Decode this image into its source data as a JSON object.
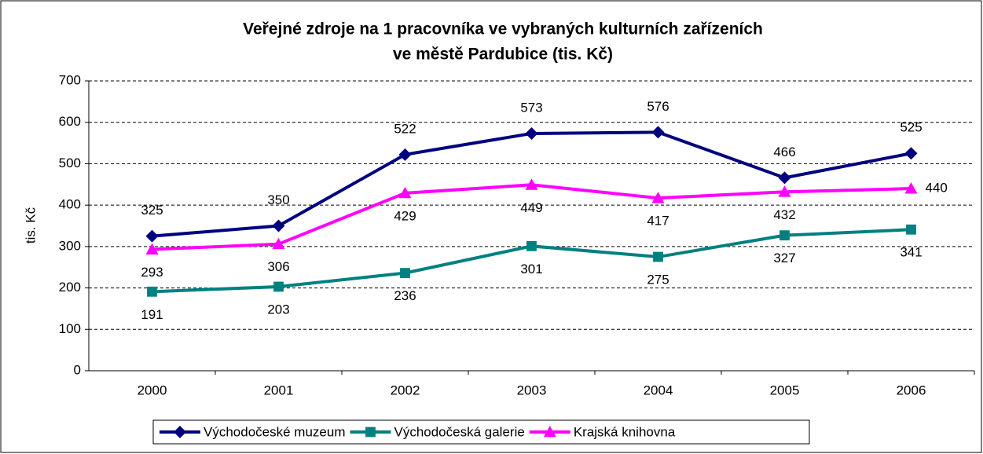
{
  "chart_data": {
    "type": "line",
    "title": [
      "Veřejné zdroje na 1 pracovníka ve vybraných kulturních zařízeních",
      "ve městě Pardubice (tis. Kč)"
    ],
    "y_label": "tis. Kč",
    "categories": [
      "2000",
      "2001",
      "2002",
      "2003",
      "2004",
      "2005",
      "2006"
    ],
    "series": [
      {
        "name": "Východočeské muzeum",
        "color": "#000080",
        "marker": "diamond",
        "label_position": "above",
        "values": [
          325,
          350,
          522,
          573,
          576,
          466,
          525
        ]
      },
      {
        "name": "Východočeská galerie",
        "color": "#008080",
        "marker": "square",
        "label_position": "below",
        "values": [
          191,
          203,
          236,
          301,
          275,
          327,
          341
        ]
      },
      {
        "name": "Krajská knihovna",
        "color": "#ff00ff",
        "marker": "triangle",
        "label_position": "below",
        "values": [
          293,
          306,
          429,
          449,
          417,
          432,
          440
        ]
      }
    ],
    "ylim": [
      0,
      700
    ],
    "yticks": [
      0,
      100,
      200,
      300,
      400,
      500,
      600,
      700
    ],
    "grid": true,
    "legend": "bottom"
  }
}
